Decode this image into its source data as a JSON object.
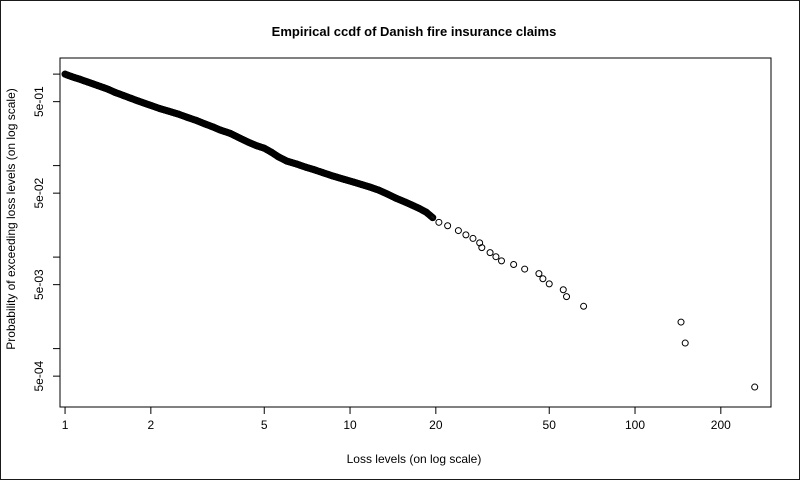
{
  "chart_data": {
    "type": "scatter",
    "title": "Empirical ccdf of Danish fire insurance claims",
    "xlabel": "Loss levels (on log scale)",
    "ylabel": "Probability of exceeding loss levels (on log scale)",
    "x_scale": "log",
    "y_scale": "log",
    "xlim": [
      0.96,
      300
    ],
    "ylim": [
      0.00023,
      1.5
    ],
    "x_ticks": [
      1,
      2,
      5,
      10,
      20,
      50,
      100,
      200
    ],
    "x_tick_labels": [
      "1",
      "2",
      "5",
      "10",
      "20",
      "50",
      "100",
      "200"
    ],
    "y_ticks": [
      0.0005,
      0.005,
      0.05,
      0.5
    ],
    "y_tick_labels": [
      "5e-04",
      "5e-03",
      "5e-02",
      "5e-01"
    ],
    "grid": false,
    "legend": "none",
    "marker": "open-circle",
    "marker_color": "#000000",
    "points": [
      [
        1.0,
        0.999
      ],
      [
        1.02,
        0.975
      ],
      [
        1.05,
        0.945
      ],
      [
        1.08,
        0.915
      ],
      [
        1.12,
        0.885
      ],
      [
        1.16,
        0.85
      ],
      [
        1.2,
        0.82
      ],
      [
        1.25,
        0.785
      ],
      [
        1.3,
        0.75
      ],
      [
        1.36,
        0.715
      ],
      [
        1.42,
        0.68
      ],
      [
        1.5,
        0.63
      ],
      [
        1.6,
        0.585
      ],
      [
        1.7,
        0.545
      ],
      [
        1.8,
        0.51
      ],
      [
        1.9,
        0.48
      ],
      [
        2.0,
        0.455
      ],
      [
        2.15,
        0.42
      ],
      [
        2.3,
        0.395
      ],
      [
        2.5,
        0.365
      ],
      [
        2.7,
        0.335
      ],
      [
        2.9,
        0.31
      ],
      [
        3.1,
        0.285
      ],
      [
        3.3,
        0.265
      ],
      [
        3.5,
        0.245
      ],
      [
        3.8,
        0.225
      ],
      [
        4.1,
        0.2
      ],
      [
        4.4,
        0.18
      ],
      [
        4.7,
        0.165
      ],
      [
        5.0,
        0.155
      ],
      [
        5.3,
        0.14
      ],
      [
        5.6,
        0.125
      ],
      [
        6.0,
        0.112
      ],
      [
        6.5,
        0.104
      ],
      [
        7.0,
        0.096
      ],
      [
        7.5,
        0.09
      ],
      [
        8.0,
        0.084
      ],
      [
        8.7,
        0.077
      ],
      [
        9.5,
        0.071
      ],
      [
        10.3,
        0.066
      ],
      [
        11.0,
        0.062
      ],
      [
        11.8,
        0.058
      ],
      [
        12.6,
        0.054
      ],
      [
        13.5,
        0.049
      ],
      [
        14.5,
        0.044
      ],
      [
        15.6,
        0.04
      ],
      [
        16.5,
        0.037
      ],
      [
        17.5,
        0.034
      ],
      [
        18.5,
        0.031
      ],
      [
        19.5,
        0.027
      ],
      [
        20.5,
        0.024
      ],
      [
        22.0,
        0.022
      ],
      [
        24.0,
        0.0195
      ],
      [
        25.5,
        0.0175
      ],
      [
        27.0,
        0.016
      ],
      [
        28.5,
        0.0143
      ],
      [
        29.0,
        0.0127
      ],
      [
        31.0,
        0.0112
      ],
      [
        32.5,
        0.0101
      ],
      [
        34.0,
        0.0091
      ],
      [
        37.5,
        0.0083
      ],
      [
        41.0,
        0.0074
      ],
      [
        46.0,
        0.0066
      ],
      [
        47.5,
        0.0058
      ],
      [
        50.0,
        0.0051
      ],
      [
        56.0,
        0.0044
      ],
      [
        57.5,
        0.0037
      ],
      [
        66.0,
        0.0029
      ],
      [
        145.0,
        0.00195
      ],
      [
        150.0,
        0.00115
      ],
      [
        263.0,
        0.00038
      ]
    ]
  }
}
